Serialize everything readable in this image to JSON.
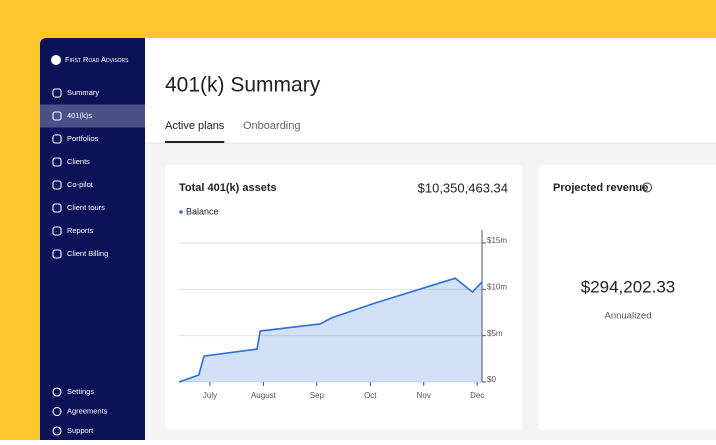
{
  "sidebar": {
    "brand": "First Road Advisors",
    "menu": [
      "Summary",
      "401(k)s",
      "Portfolios",
      "Clients",
      "Co-pilot",
      "Client tours",
      "Reports",
      "Client Billing"
    ],
    "active": 1,
    "footer_menu": [
      "Settings",
      "Agreements",
      "Support"
    ]
  },
  "header": {
    "title": "401(k) Summary",
    "tabs": [
      "Active plans",
      "Onboarding"
    ],
    "active_tab": 0
  },
  "assets_card": {
    "total": "$10,350,463.34"
  },
  "chart_data": {
    "type": "area",
    "title": "Total 401(k) assets",
    "x": [
      6.42,
      6.79,
      6.89,
      7.88,
      7.94,
      9.06,
      9.27,
      10.09,
      11.59,
      11.91,
      12.09
    ],
    "series": [
      {
        "name": "Balance",
        "color": "#2f6fdc",
        "values": [
          0,
          0.76,
          2.8,
          3.56,
          5.5,
          6.26,
          6.9,
          8.52,
          11.2,
          9.7,
          10.8
        ]
      }
    ],
    "xlim": [
      6.42,
      12.09
    ],
    "xticks": [
      {
        "value": 7,
        "label": "July"
      },
      {
        "value": 8,
        "label": "August"
      },
      {
        "value": 9,
        "label": "Sep"
      },
      {
        "value": 10,
        "label": "Oct"
      },
      {
        "value": 11,
        "label": "Nov"
      },
      {
        "value": 12,
        "label": "Dec"
      }
    ],
    "ylim": [
      0,
      16.4
    ],
    "yticks": [
      {
        "value": 0,
        "label": "$0"
      },
      {
        "value": 5,
        "label": "$5m"
      },
      {
        "value": 10,
        "label": "$10m"
      },
      {
        "value": 15,
        "label": "$15m"
      }
    ],
    "grid": true
  },
  "revenue_card": {
    "title": "Projected revenue",
    "value": "$294,202.33",
    "caption": "Annualized"
  }
}
